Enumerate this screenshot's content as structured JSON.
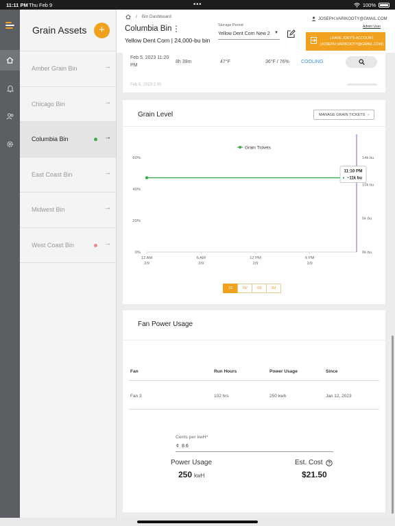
{
  "status_bar": {
    "time": "11:11 PM",
    "date": "Thu Feb 9",
    "battery": "100%"
  },
  "rail": {
    "items": [
      {
        "icon": "home-icon"
      },
      {
        "icon": "bell-icon"
      },
      {
        "icon": "users-icon"
      },
      {
        "icon": "gear-icon"
      }
    ]
  },
  "assets": {
    "title": "Grain Assets",
    "add_label": "+",
    "items": [
      {
        "name": "Amber Grain Bin",
        "status": ""
      },
      {
        "name": "Chicago Bin",
        "status": ""
      },
      {
        "name": "Columbia Bin",
        "status": "green",
        "selected": true
      },
      {
        "name": "East Coast Bin",
        "status": ""
      },
      {
        "name": "Midwest Bin",
        "status": ""
      },
      {
        "name": "West Coast Bin",
        "status": "red"
      }
    ],
    "arrow": "→",
    "colors": {
      "green": "#3ea84a",
      "red": "#f08a8a"
    }
  },
  "header": {
    "breadcrumb_sep": "/",
    "breadcrumb": "Bin Dashboard",
    "title": "Columbia Bin",
    "kebab": "⋮",
    "subtitle": "Yellow Dent Corn | 24,000-bu bin",
    "storage_period_label": "Storage Period",
    "storage_period_value": "Yellow Dent Corn New 2",
    "user_email": "JOSEPH.VARIKOOTY@GMAIL.COM",
    "user_role": "Admin User",
    "leave_line1": "LEAVE JOEY'S ACCOUNT",
    "leave_line2": "(JOSEPH.VARIKOOTY@GMAIL.COM)"
  },
  "history": {
    "row": {
      "datetime_1": "Feb 5, 2023 11:20",
      "datetime_2": "PM",
      "duration": "8h 39m",
      "temp": "47°F",
      "weather": "36°F / 76%",
      "status": "COOLING"
    },
    "peek_text": "Feb 5, 2023 2:00"
  },
  "grain_level": {
    "title": "Grain Level",
    "manage_label": "MANAGE GRAIN TICKETS",
    "manage_chevron": "›",
    "tooltip_time": "11:10 PM",
    "tooltip_value": "~11k bu",
    "periods": [
      "1D",
      "1W",
      "1M",
      "3M"
    ],
    "active_period": "1D"
  },
  "chart_data": {
    "type": "line",
    "legend": "Grain Tickets",
    "legend_position": "top-center",
    "x_ticks": [
      {
        "time": "12 AM",
        "date": "2/9"
      },
      {
        "time": "6 AM",
        "date": "2/9"
      },
      {
        "time": "12 PM",
        "date": "2/9"
      },
      {
        "time": "6 PM",
        "date": "2/9"
      }
    ],
    "xlim": [
      "2/9 12 AM",
      "2/9 11:10 PM"
    ],
    "y_left_ticks": [
      "0%",
      "20%",
      "40%",
      "60%"
    ],
    "ylim_left": [
      0,
      60
    ],
    "y_right_ticks": [
      "0k bu",
      "5k bu",
      "10k bu",
      "14k bu"
    ],
    "ylim_right": [
      0,
      14
    ],
    "series": [
      {
        "name": "Grain Tickets",
        "color": "#3ea84a",
        "x": [
          "2/9 12 AM",
          "2/9 11:10 PM"
        ],
        "values_kbu": [
          11,
          11
        ]
      }
    ],
    "cursor": "2/9 11:10 PM",
    "cursor_color": "#6b6bd6",
    "grid": false
  },
  "fan_power": {
    "title": "Fan Power Usage",
    "headers": [
      "Fan",
      "Run Hours",
      "Power Usage",
      "Since"
    ],
    "rows": [
      {
        "fan": "Fan 3",
        "hours": "102 hrs",
        "usage": "250 kwh",
        "since": "Jan 12, 2023"
      }
    ],
    "cents_label": "Cents per kwH*",
    "cents_currency": "¢",
    "cents_value": "8.6",
    "power_usage_label": "Power Usage",
    "power_usage_value": "250",
    "power_usage_unit": "kwH",
    "est_cost_label": "Est. Cost",
    "est_cost_value": "$21.50"
  }
}
